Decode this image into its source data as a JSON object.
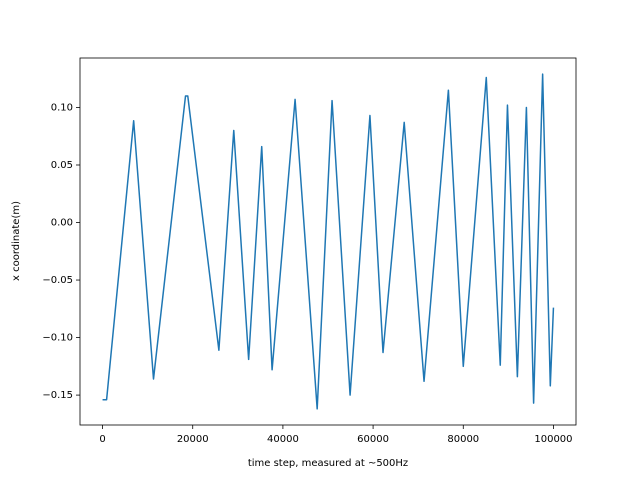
{
  "chart_data": {
    "type": "line",
    "x_label": "time step, measured at ~500Hz",
    "y_label": "x coordinate(m)",
    "x": [
      0,
      900,
      6900,
      11300,
      18400,
      18900,
      25800,
      29100,
      32400,
      35300,
      37600,
      42700,
      47600,
      50900,
      54900,
      59300,
      62200,
      66900,
      71300,
      76700,
      80000,
      85100,
      88200,
      89800,
      92000,
      94000,
      95600,
      97600,
      99300,
      100000
    ],
    "series": [
      {
        "color": "#1f77b4",
        "values": [
          -0.154,
          -0.154,
          0.0885,
          -0.136,
          0.11,
          0.11,
          -0.111,
          0.08,
          -0.119,
          0.066,
          -0.128,
          0.107,
          -0.162,
          0.106,
          -0.15,
          0.093,
          -0.113,
          0.087,
          -0.138,
          0.115,
          -0.125,
          0.126,
          -0.124,
          0.102,
          -0.134,
          0.1,
          -0.157,
          0.129,
          -0.142,
          -0.074
        ]
      }
    ],
    "xlim": [
      -5000,
      105000
    ],
    "ylim": [
      -0.176,
      0.143
    ],
    "xticks": [
      0,
      20000,
      40000,
      60000,
      80000,
      100000
    ],
    "yticks": [
      {
        "value": 0.1,
        "label": "0.10"
      },
      {
        "value": 0.05,
        "label": "0.05"
      },
      {
        "value": 0.0,
        "label": "0.00"
      },
      {
        "value": -0.05,
        "label": "−0.05"
      },
      {
        "value": -0.1,
        "label": "−0.10"
      },
      {
        "value": -0.15,
        "label": "−0.15"
      }
    ]
  }
}
